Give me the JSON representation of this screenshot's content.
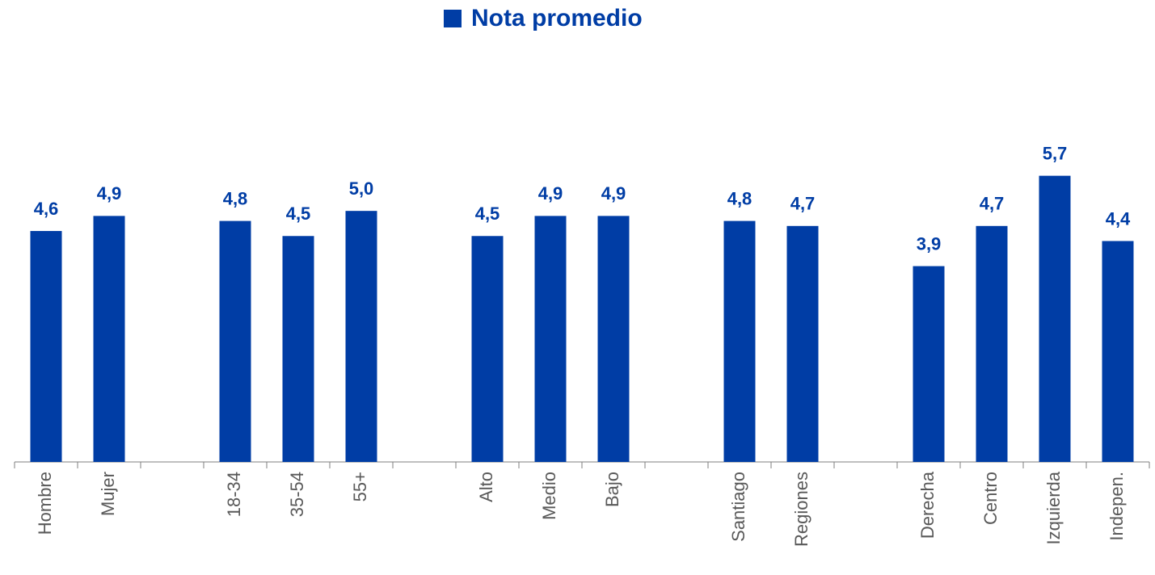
{
  "chart_data": {
    "type": "bar",
    "categories": [
      "Hombre",
      "Mujer",
      null,
      "18-34",
      "35-54",
      "55+",
      null,
      "Alto",
      "Medio",
      "Bajo",
      null,
      "Santiago",
      "Regiones",
      null,
      "Derecha",
      "Centro",
      "Izquierda",
      "Indepen."
    ],
    "series": [
      {
        "name": "Nota promedio",
        "color": "#003da5",
        "values": [
          4.6,
          4.9,
          null,
          4.8,
          4.5,
          5.0,
          null,
          4.5,
          4.9,
          4.9,
          null,
          4.8,
          4.7,
          null,
          3.9,
          4.7,
          5.7,
          4.4
        ],
        "value_labels": [
          "4,6",
          "4,9",
          null,
          "4,8",
          "4,5",
          "5,0",
          null,
          "4,5",
          "4,9",
          "4,9",
          null,
          "4,8",
          "4,7",
          null,
          "3,9",
          "4,7",
          "5,7",
          "4,4"
        ]
      }
    ],
    "ylim": [
      0,
      6
    ],
    "legend": "top"
  }
}
